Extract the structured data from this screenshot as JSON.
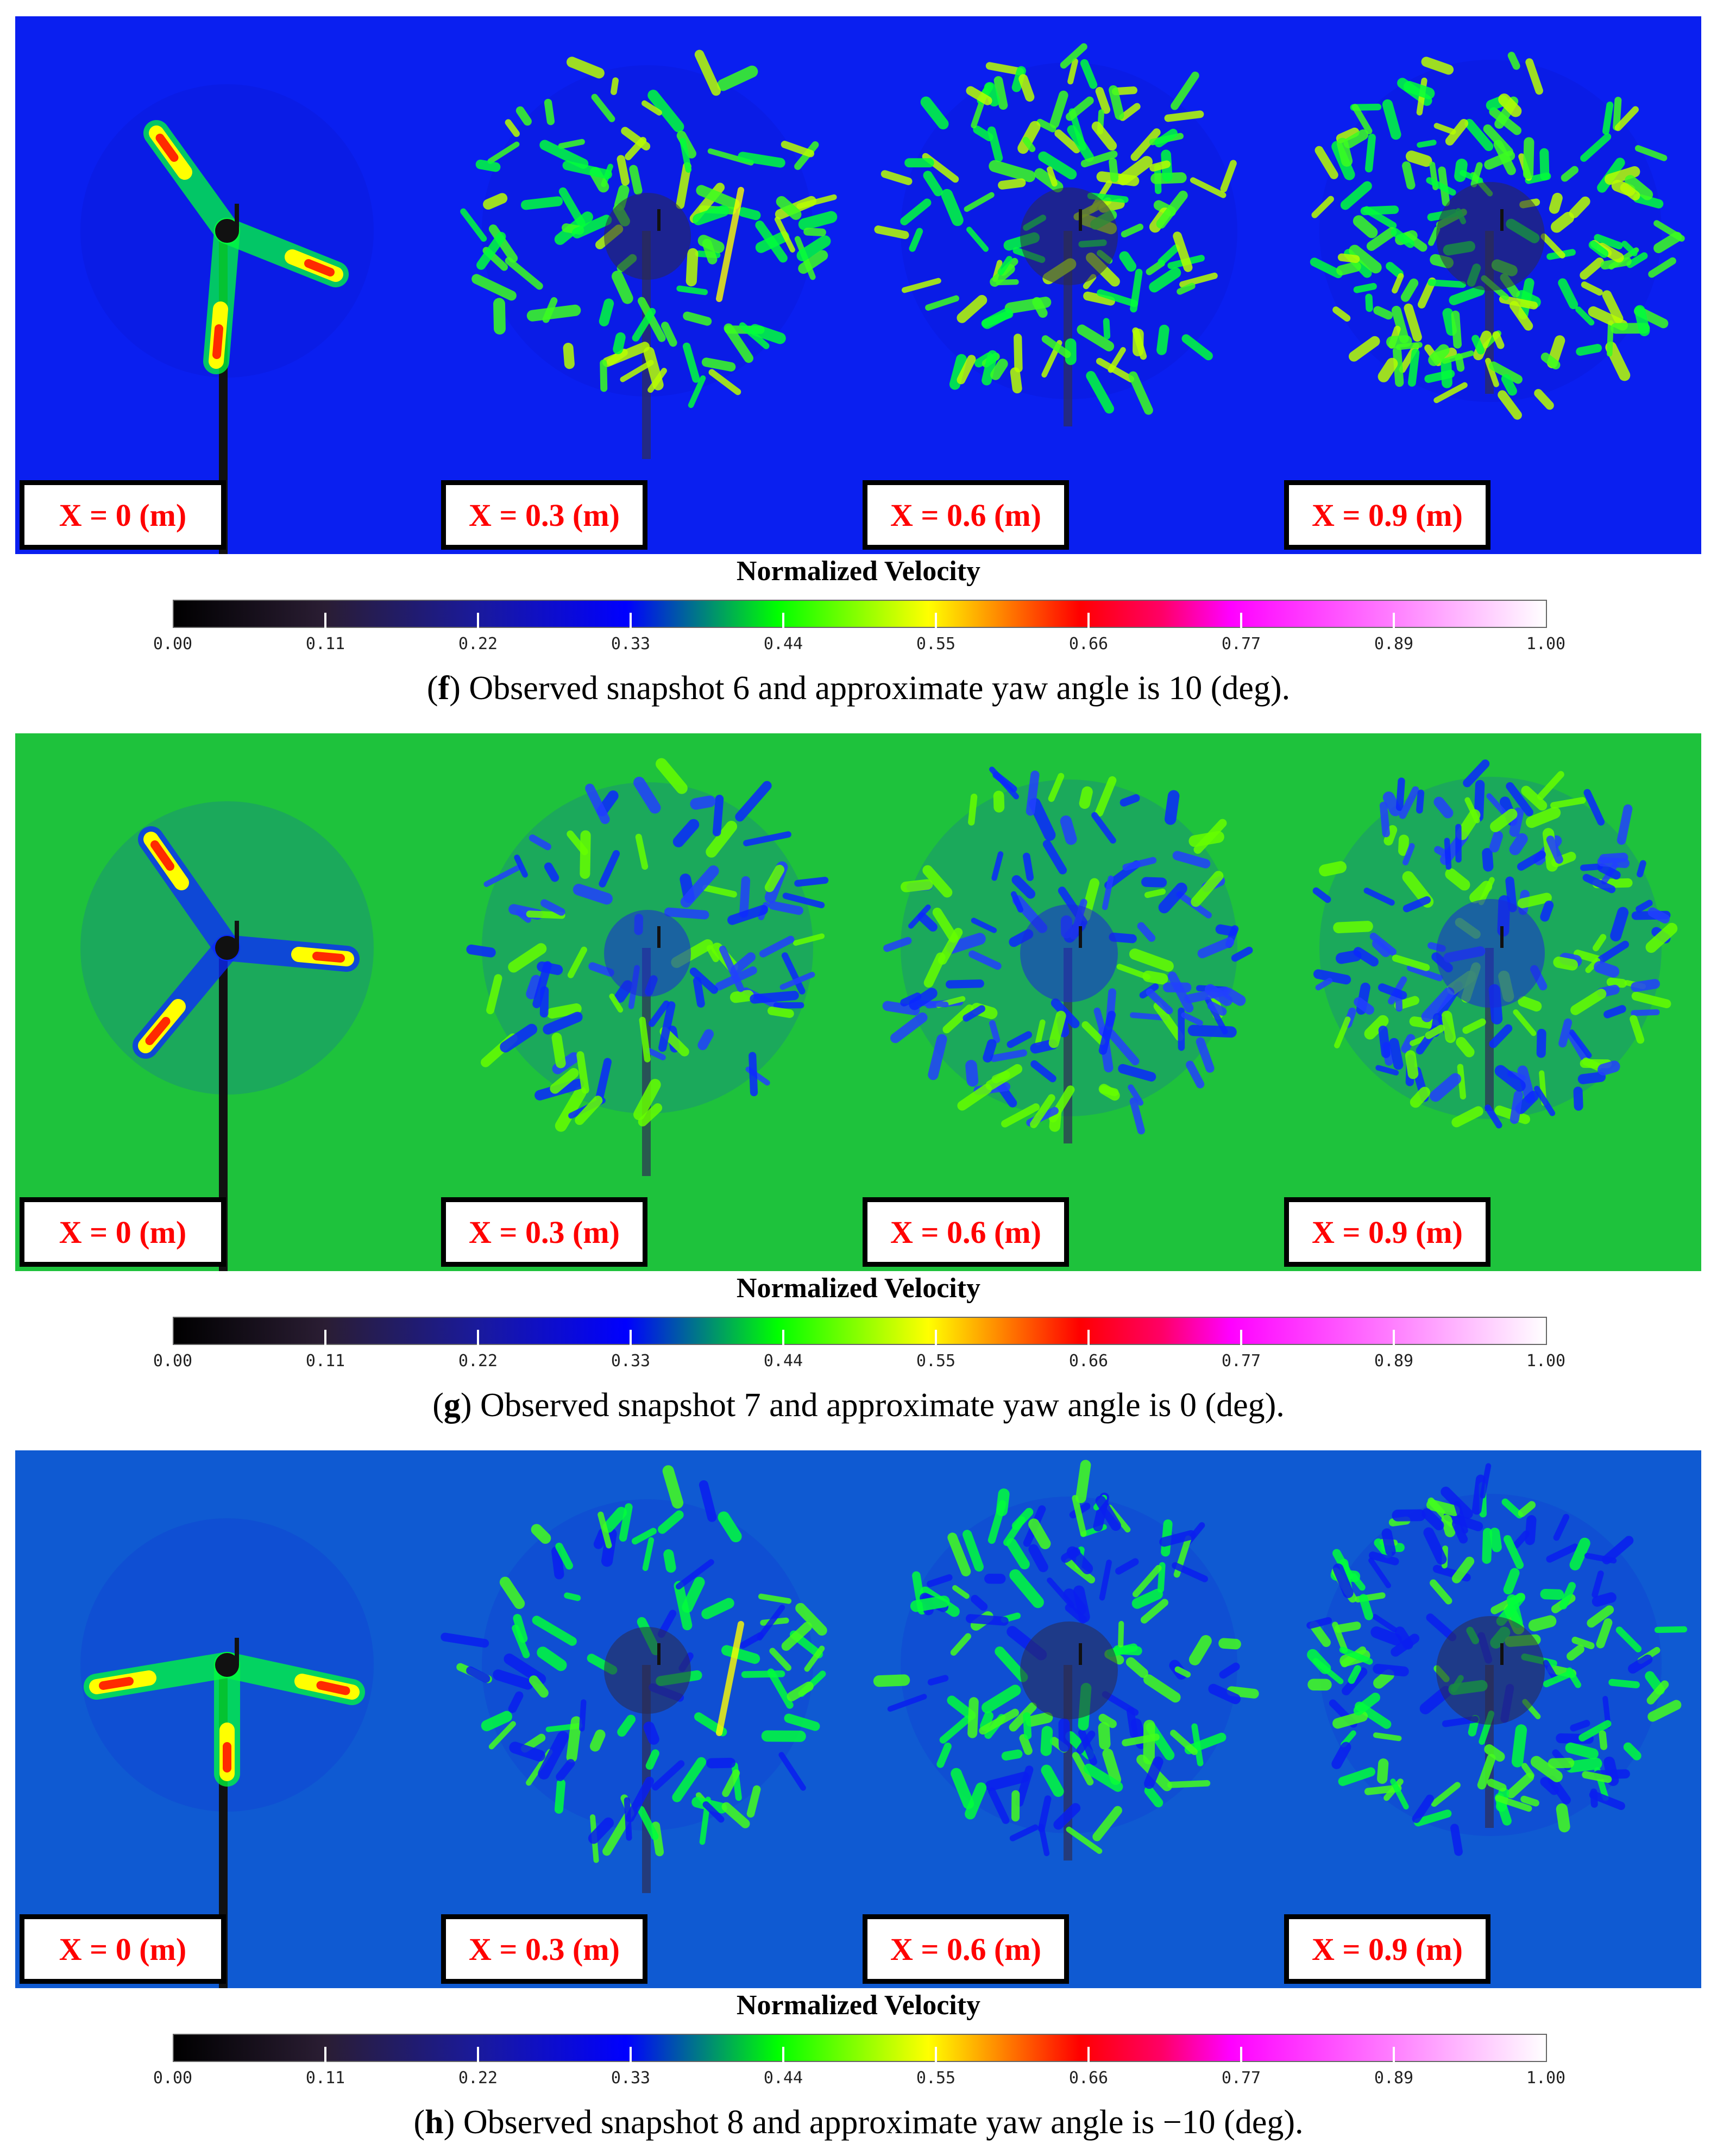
{
  "colormap": {
    "title": "Normalized Velocity",
    "ticks": [
      "0.00",
      "0.11",
      "0.22",
      "0.33",
      "0.44",
      "0.55",
      "0.66",
      "0.77",
      "0.89",
      "1.00"
    ]
  },
  "figures": [
    {
      "letter": "f",
      "caption": " Observed snapshot 6 and approximate yaw angle is 10 (deg).",
      "background": "#0a1ff0",
      "panels": [
        {
          "label": "X = 0 (m)"
        },
        {
          "label": "X = 0.3 (m)"
        },
        {
          "label": "X = 0.6 (m)"
        },
        {
          "label": "X = 0.9 (m)"
        }
      ]
    },
    {
      "letter": "g",
      "caption": " Observed snapshot 7 and approximate yaw angle is 0 (deg).",
      "background": "#1ec23c",
      "panels": [
        {
          "label": "X = 0 (m)"
        },
        {
          "label": "X = 0.3 (m)"
        },
        {
          "label": "X = 0.6 (m)"
        },
        {
          "label": "X = 0.9 (m)"
        }
      ]
    },
    {
      "letter": "h",
      "caption": " Observed snapshot 8 and approximate yaw angle is −10 (deg).",
      "background": "#0f5ad2",
      "panels": [
        {
          "label": "X = 0 (m)"
        },
        {
          "label": "X = 0.3 (m)"
        },
        {
          "label": "X = 0.6 (m)"
        },
        {
          "label": "X = 0.9 (m)"
        }
      ]
    }
  ]
}
